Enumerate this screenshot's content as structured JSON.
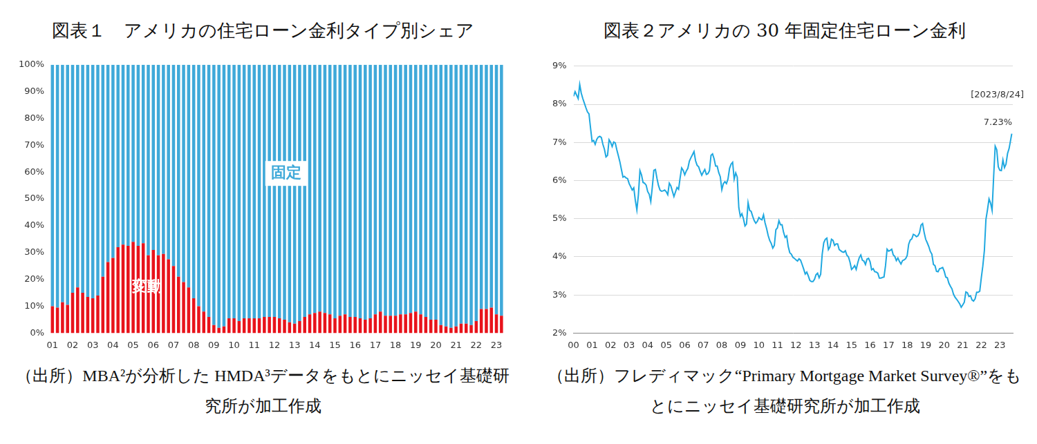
{
  "chart_data": [
    {
      "type": "bar",
      "title": "図表１　アメリカの住宅ローン金利タイプ別シェア",
      "source": "（出所）MBA²が分析した HMDA³データをもとにニッセイ基礎研究所が加工作成",
      "stacked": true,
      "grid": false,
      "categories": [
        "01",
        null,
        null,
        null,
        "02",
        null,
        null,
        null,
        "03",
        null,
        null,
        null,
        "04",
        null,
        null,
        null,
        "05",
        null,
        null,
        null,
        "06",
        null,
        null,
        null,
        "07",
        null,
        null,
        null,
        "08",
        null,
        null,
        null,
        "09",
        null,
        null,
        null,
        "10",
        null,
        null,
        null,
        "11",
        null,
        null,
        null,
        "12",
        null,
        null,
        null,
        "13",
        null,
        null,
        null,
        "14",
        null,
        null,
        null,
        "15",
        null,
        null,
        null,
        "16",
        null,
        null,
        null,
        "17",
        null,
        null,
        null,
        "18",
        null,
        null,
        null,
        "19",
        null,
        null,
        null,
        "20",
        null,
        null,
        null,
        "21",
        null,
        null,
        null,
        "22",
        null,
        null,
        null,
        "23",
        null
      ],
      "series": [
        {
          "name": "変動",
          "color": "#e8131b",
          "values": [
            10,
            9.5,
            11.5,
            10.5,
            15,
            17,
            15,
            13.5,
            13,
            14,
            21,
            26.5,
            28,
            32,
            33,
            32.5,
            34,
            32.5,
            33.5,
            29,
            31,
            29,
            29.5,
            27.5,
            25,
            21,
            19,
            17,
            13,
            10,
            8,
            6,
            3,
            2,
            2.5,
            5.5,
            5.5,
            4.5,
            5.5,
            5.5,
            5.5,
            5.5,
            6,
            6,
            6,
            5.5,
            5,
            4,
            3.5,
            4.5,
            6,
            7,
            7.5,
            8,
            7.5,
            7,
            5.5,
            6.5,
            7,
            6,
            6,
            5.5,
            5,
            5.5,
            7,
            8,
            6.5,
            6.5,
            6.5,
            7,
            7,
            7.5,
            8,
            7,
            6,
            5,
            5,
            3,
            2.5,
            2,
            2.5,
            3.5,
            3.5,
            3,
            4.5,
            9,
            9,
            9.5,
            7,
            6.5
          ]
        },
        {
          "name": "固定",
          "color": "#3fa9d9",
          "values": [
            90,
            90.5,
            88.5,
            89.5,
            85,
            83,
            85,
            86.5,
            87,
            86,
            79,
            73.5,
            72,
            68,
            67,
            67.5,
            66,
            67.5,
            66.5,
            71,
            69,
            71,
            70.5,
            72.5,
            75,
            79,
            81,
            83,
            87,
            90,
            92,
            94,
            97,
            98,
            97.5,
            94.5,
            94.5,
            95.5,
            94.5,
            94.5,
            94.5,
            94.5,
            94,
            94,
            94,
            94.5,
            95,
            96,
            96.5,
            95.5,
            94,
            93,
            92.5,
            92,
            92.5,
            93,
            94.5,
            93.5,
            93,
            94,
            94,
            94.5,
            95,
            94.5,
            93,
            92,
            93.5,
            93.5,
            93.5,
            93,
            93,
            92.5,
            92,
            93,
            94,
            95,
            95,
            97,
            97.5,
            98,
            97.5,
            96.5,
            96.5,
            97,
            95.5,
            91,
            91,
            90.5,
            93,
            93.5
          ]
        }
      ],
      "ylim": [
        0,
        100
      ],
      "yticks": [
        {
          "value": 0,
          "label": "0%"
        },
        {
          "value": 10,
          "label": "10%"
        },
        {
          "value": 20,
          "label": "20%"
        },
        {
          "value": 30,
          "label": "30%"
        },
        {
          "value": 40,
          "label": "40%"
        },
        {
          "value": 50,
          "label": "50%"
        },
        {
          "value": 60,
          "label": "60%"
        },
        {
          "value": 70,
          "label": "70%"
        },
        {
          "value": 80,
          "label": "80%"
        },
        {
          "value": 90,
          "label": "90%"
        },
        {
          "value": 100,
          "label": "100%"
        }
      ]
    },
    {
      "type": "line",
      "title": "図表２アメリカの 30 年固定住宅ローン金利",
      "source": "（出所）フレディマック“Primary Mortgage Market Survey®”をもとにニッセイ基礎研究所が加工作成",
      "grid": true,
      "color": "#1fa8e0",
      "annotations": [
        "[2023/8/24]",
        "7.23%"
      ],
      "x": [
        2000,
        2000.083,
        2000.167,
        2000.25,
        2000.333,
        2000.417,
        2000.5,
        2000.583,
        2000.667,
        2000.75,
        2000.833,
        2000.917,
        2001,
        2001.083,
        2001.167,
        2001.25,
        2001.333,
        2001.417,
        2001.5,
        2001.583,
        2001.667,
        2001.75,
        2001.833,
        2001.917,
        2002,
        2002.083,
        2002.167,
        2002.25,
        2002.333,
        2002.417,
        2002.5,
        2002.583,
        2002.667,
        2002.75,
        2002.833,
        2002.917,
        2003,
        2003.083,
        2003.167,
        2003.25,
        2003.333,
        2003.417,
        2003.5,
        2003.583,
        2003.667,
        2003.75,
        2003.833,
        2003.917,
        2004,
        2004.083,
        2004.167,
        2004.25,
        2004.333,
        2004.417,
        2004.5,
        2004.583,
        2004.667,
        2004.75,
        2004.833,
        2004.917,
        2005,
        2005.083,
        2005.167,
        2005.25,
        2005.333,
        2005.417,
        2005.5,
        2005.583,
        2005.667,
        2005.75,
        2005.833,
        2005.917,
        2006,
        2006.083,
        2006.167,
        2006.25,
        2006.333,
        2006.417,
        2006.5,
        2006.583,
        2006.667,
        2006.75,
        2006.833,
        2006.917,
        2007,
        2007.083,
        2007.167,
        2007.25,
        2007.333,
        2007.417,
        2007.5,
        2007.583,
        2007.667,
        2007.75,
        2007.833,
        2007.917,
        2008,
        2008.083,
        2008.167,
        2008.25,
        2008.333,
        2008.417,
        2008.5,
        2008.583,
        2008.667,
        2008.75,
        2008.833,
        2008.917,
        2009,
        2009.083,
        2009.167,
        2009.25,
        2009.333,
        2009.417,
        2009.5,
        2009.583,
        2009.667,
        2009.75,
        2009.833,
        2009.917,
        2010,
        2010.083,
        2010.167,
        2010.25,
        2010.333,
        2010.417,
        2010.5,
        2010.583,
        2010.667,
        2010.75,
        2010.833,
        2010.917,
        2011,
        2011.083,
        2011.167,
        2011.25,
        2011.333,
        2011.417,
        2011.5,
        2011.583,
        2011.667,
        2011.75,
        2011.833,
        2011.917,
        2012,
        2012.083,
        2012.167,
        2012.25,
        2012.333,
        2012.417,
        2012.5,
        2012.583,
        2012.667,
        2012.75,
        2012.833,
        2012.917,
        2013,
        2013.083,
        2013.167,
        2013.25,
        2013.333,
        2013.417,
        2013.5,
        2013.583,
        2013.667,
        2013.75,
        2013.833,
        2013.917,
        2014,
        2014.083,
        2014.167,
        2014.25,
        2014.333,
        2014.417,
        2014.5,
        2014.583,
        2014.667,
        2014.75,
        2014.833,
        2014.917,
        2015,
        2015.083,
        2015.167,
        2015.25,
        2015.333,
        2015.417,
        2015.5,
        2015.583,
        2015.667,
        2015.75,
        2015.833,
        2015.917,
        2016,
        2016.083,
        2016.167,
        2016.25,
        2016.333,
        2016.417,
        2016.5,
        2016.583,
        2016.667,
        2016.75,
        2016.833,
        2016.917,
        2017,
        2017.083,
        2017.167,
        2017.25,
        2017.333,
        2017.417,
        2017.5,
        2017.583,
        2017.667,
        2017.75,
        2017.833,
        2017.917,
        2018,
        2018.083,
        2018.167,
        2018.25,
        2018.333,
        2018.417,
        2018.5,
        2018.583,
        2018.667,
        2018.75,
        2018.833,
        2018.917,
        2019,
        2019.083,
        2019.167,
        2019.25,
        2019.333,
        2019.417,
        2019.5,
        2019.583,
        2019.667,
        2019.75,
        2019.833,
        2019.917,
        2020,
        2020.083,
        2020.167,
        2020.25,
        2020.333,
        2020.417,
        2020.5,
        2020.583,
        2020.667,
        2020.75,
        2020.833,
        2020.917,
        2021,
        2021.083,
        2021.167,
        2021.25,
        2021.333,
        2021.417,
        2021.5,
        2021.583,
        2021.667,
        2021.75,
        2021.833,
        2021.917,
        2022,
        2022.083,
        2022.167,
        2022.25,
        2022.333,
        2022.417,
        2022.5,
        2022.583,
        2022.667,
        2022.75,
        2022.833,
        2022.917,
        2023,
        2023.083,
        2023.167,
        2023.25,
        2023.333,
        2023.417,
        2023.5,
        2023.644
      ],
      "values": [
        8.21,
        8.33,
        8.24,
        8.15,
        8.52,
        8.29,
        8.15,
        8.03,
        7.91,
        7.8,
        7.75,
        7.38,
        7.03,
        7.05,
        6.95,
        7.08,
        7.14,
        7.16,
        7.13,
        6.95,
        6.82,
        6.62,
        6.66,
        7.07,
        7.0,
        6.89,
        7.01,
        6.99,
        6.81,
        6.65,
        6.49,
        6.29,
        6.09,
        6.11,
        6.07,
        6.05,
        5.92,
        5.84,
        5.75,
        5.81,
        5.48,
        5.23,
        5.63,
        6.26,
        6.15,
        5.95,
        5.93,
        5.88,
        5.71,
        5.64,
        5.45,
        5.83,
        6.27,
        6.29,
        6.06,
        5.87,
        5.75,
        5.72,
        5.73,
        5.75,
        5.71,
        5.63,
        5.93,
        5.86,
        5.72,
        5.58,
        5.7,
        5.82,
        5.77,
        6.07,
        6.33,
        6.27,
        6.15,
        6.25,
        6.32,
        6.51,
        6.6,
        6.68,
        6.76,
        6.52,
        6.4,
        6.36,
        6.24,
        6.14,
        6.22,
        6.29,
        6.16,
        6.18,
        6.26,
        6.66,
        6.7,
        6.57,
        6.38,
        6.38,
        6.21,
        6.1,
        5.76,
        5.92,
        5.97,
        5.92,
        6.04,
        6.32,
        6.43,
        6.48,
        6.04,
        6.2,
        6.09,
        5.29,
        5.06,
        5.13,
        5.0,
        4.81,
        4.86,
        5.42,
        5.22,
        5.19,
        5.06,
        4.95,
        4.88,
        4.93,
        5.03,
        4.99,
        4.97,
        5.1,
        4.89,
        4.74,
        4.56,
        4.43,
        4.35,
        4.23,
        4.3,
        4.71,
        4.76,
        4.95,
        4.84,
        4.84,
        4.64,
        4.51,
        4.55,
        4.27,
        4.11,
        4.07,
        3.99,
        3.96,
        3.92,
        3.89,
        3.95,
        3.91,
        3.8,
        3.68,
        3.55,
        3.6,
        3.5,
        3.38,
        3.35,
        3.35,
        3.41,
        3.53,
        3.57,
        3.45,
        3.54,
        4.07,
        4.37,
        4.46,
        4.49,
        4.19,
        4.26,
        4.46,
        4.43,
        4.3,
        4.34,
        4.34,
        4.19,
        4.16,
        4.13,
        4.12,
        4.16,
        4.04,
        4.0,
        3.86,
        3.67,
        3.71,
        3.77,
        3.67,
        3.84,
        3.98,
        4.05,
        3.91,
        3.89,
        3.8,
        3.94,
        3.96,
        3.87,
        3.66,
        3.69,
        3.61,
        3.6,
        3.57,
        3.44,
        3.44,
        3.46,
        3.47,
        3.77,
        4.2,
        4.15,
        4.17,
        4.2,
        4.05,
        4.01,
        3.9,
        3.97,
        3.88,
        3.81,
        3.9,
        3.92,
        3.95,
        4.03,
        4.33,
        4.44,
        4.47,
        4.59,
        4.57,
        4.53,
        4.55,
        4.63,
        4.83,
        4.87,
        4.64,
        4.46,
        4.37,
        4.27,
        4.14,
        4.07,
        3.8,
        3.77,
        3.62,
        3.61,
        3.69,
        3.7,
        3.72,
        3.62,
        3.47,
        3.45,
        3.31,
        3.23,
        3.16,
        3.02,
        2.94,
        2.89,
        2.83,
        2.77,
        2.68,
        2.74,
        2.81,
        3.08,
        3.06,
        2.96,
        2.98,
        2.87,
        2.84,
        2.9,
        3.07,
        3.07,
        3.1,
        3.45,
        3.76,
        4.17,
        4.98,
        5.23,
        5.52,
        5.41,
        5.22,
        6.11,
        6.9,
        6.81,
        6.36,
        6.27,
        6.26,
        6.54,
        6.34,
        6.43,
        6.71,
        6.84,
        7.23
      ],
      "xlim": [
        2000,
        2023.7
      ],
      "xticks": [
        {
          "value": 2000,
          "label": "00"
        },
        {
          "value": 2001,
          "label": "01"
        },
        {
          "value": 2002,
          "label": "02"
        },
        {
          "value": 2003,
          "label": "03"
        },
        {
          "value": 2004,
          "label": "04"
        },
        {
          "value": 2005,
          "label": "05"
        },
        {
          "value": 2006,
          "label": "06"
        },
        {
          "value": 2007,
          "label": "07"
        },
        {
          "value": 2008,
          "label": "08"
        },
        {
          "value": 2009,
          "label": "09"
        },
        {
          "value": 2010,
          "label": "10"
        },
        {
          "value": 2011,
          "label": "11"
        },
        {
          "value": 2012,
          "label": "12"
        },
        {
          "value": 2013,
          "label": "13"
        },
        {
          "value": 2014,
          "label": "14"
        },
        {
          "value": 2015,
          "label": "15"
        },
        {
          "value": 2016,
          "label": "16"
        },
        {
          "value": 2017,
          "label": "17"
        },
        {
          "value": 2018,
          "label": "18"
        },
        {
          "value": 2019,
          "label": "19"
        },
        {
          "value": 2020,
          "label": "20"
        },
        {
          "value": 2021,
          "label": "21"
        },
        {
          "value": 2022,
          "label": "22"
        },
        {
          "value": 2023,
          "label": "23"
        }
      ],
      "ylim": [
        2,
        9
      ],
      "yticks": [
        {
          "value": 2,
          "label": "2%"
        },
        {
          "value": 3,
          "label": "3%"
        },
        {
          "value": 4,
          "label": "4%"
        },
        {
          "value": 5,
          "label": "5%"
        },
        {
          "value": 6,
          "label": "6%"
        },
        {
          "value": 7,
          "label": "7%"
        },
        {
          "value": 8,
          "label": "8%"
        },
        {
          "value": 9,
          "label": "9%"
        }
      ]
    }
  ]
}
